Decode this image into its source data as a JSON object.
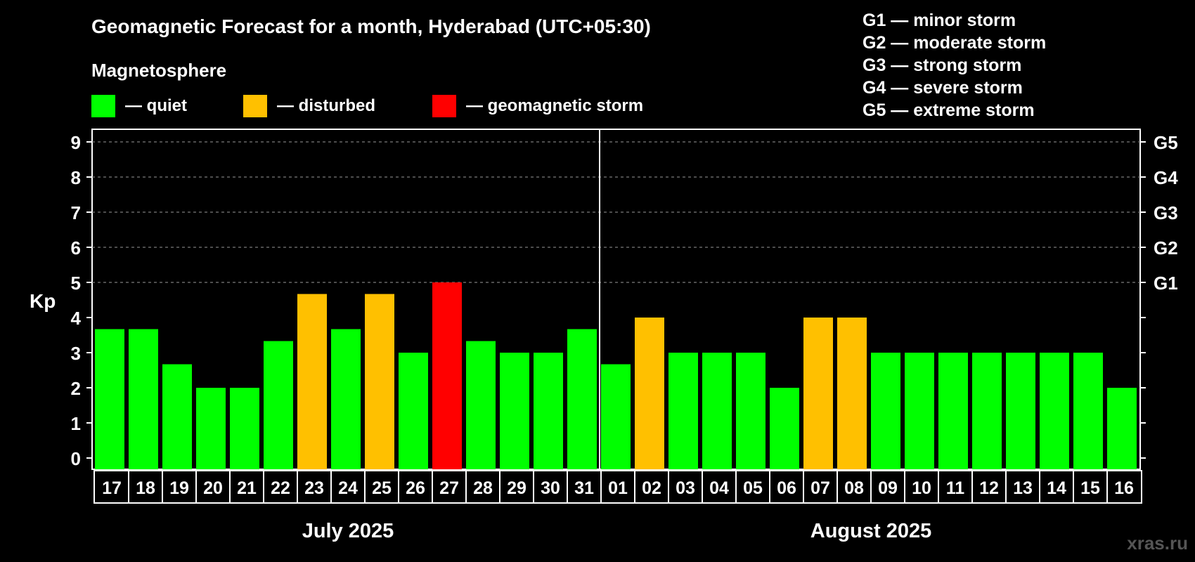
{
  "title": "Geomagnetic Forecast for a month, Hyderabad (UTC+05:30)",
  "subtitle": "Magnetosphere",
  "legend": [
    {
      "label": "— quiet",
      "color": "#00ff00"
    },
    {
      "label": "— disturbed",
      "color": "#ffc000"
    },
    {
      "label": "— geomagnetic storm",
      "color": "#ff0000"
    }
  ],
  "storm_levels": [
    "G1 — minor storm",
    "G2 — moderate storm",
    "G3 — strong storm",
    "G4 — severe storm",
    "G5 — extreme storm"
  ],
  "watermark": "xras.ru",
  "chart_data": {
    "type": "bar",
    "ylabel": "Kp",
    "ylim": [
      0,
      9
    ],
    "yticks": [
      0,
      1,
      2,
      3,
      4,
      5,
      6,
      7,
      8,
      9
    ],
    "right_ticks": [
      {
        "value": 5,
        "label": "G1"
      },
      {
        "value": 6,
        "label": "G2"
      },
      {
        "value": 7,
        "label": "G3"
      },
      {
        "value": 8,
        "label": "G4"
      },
      {
        "value": 9,
        "label": "G5"
      }
    ],
    "grid": true,
    "categories": [
      "17",
      "18",
      "19",
      "20",
      "21",
      "22",
      "23",
      "24",
      "25",
      "26",
      "27",
      "28",
      "29",
      "30",
      "31",
      "01",
      "02",
      "03",
      "04",
      "05",
      "06",
      "07",
      "08",
      "09",
      "10",
      "11",
      "12",
      "13",
      "14",
      "15",
      "16"
    ],
    "values": [
      3.67,
      3.67,
      2.67,
      2,
      2,
      3.33,
      4.67,
      3.67,
      4.67,
      3,
      5,
      3.33,
      3,
      3,
      3.67,
      2.67,
      4,
      3,
      3,
      3,
      2,
      4,
      4,
      3,
      3,
      3,
      3,
      3,
      3,
      3,
      2
    ],
    "status": [
      "quiet",
      "quiet",
      "quiet",
      "quiet",
      "quiet",
      "quiet",
      "disturbed",
      "quiet",
      "disturbed",
      "quiet",
      "storm",
      "quiet",
      "quiet",
      "quiet",
      "quiet",
      "quiet",
      "disturbed",
      "quiet",
      "quiet",
      "quiet",
      "quiet",
      "disturbed",
      "disturbed",
      "quiet",
      "quiet",
      "quiet",
      "quiet",
      "quiet",
      "quiet",
      "quiet",
      "quiet"
    ],
    "status_colors": {
      "quiet": "#00ff00",
      "disturbed": "#ffc000",
      "storm": "#ff0000"
    },
    "months": [
      {
        "label": "July 2025",
        "first_index": 0,
        "last_index": 14
      },
      {
        "label": "August 2025",
        "first_index": 15,
        "last_index": 30
      }
    ]
  }
}
